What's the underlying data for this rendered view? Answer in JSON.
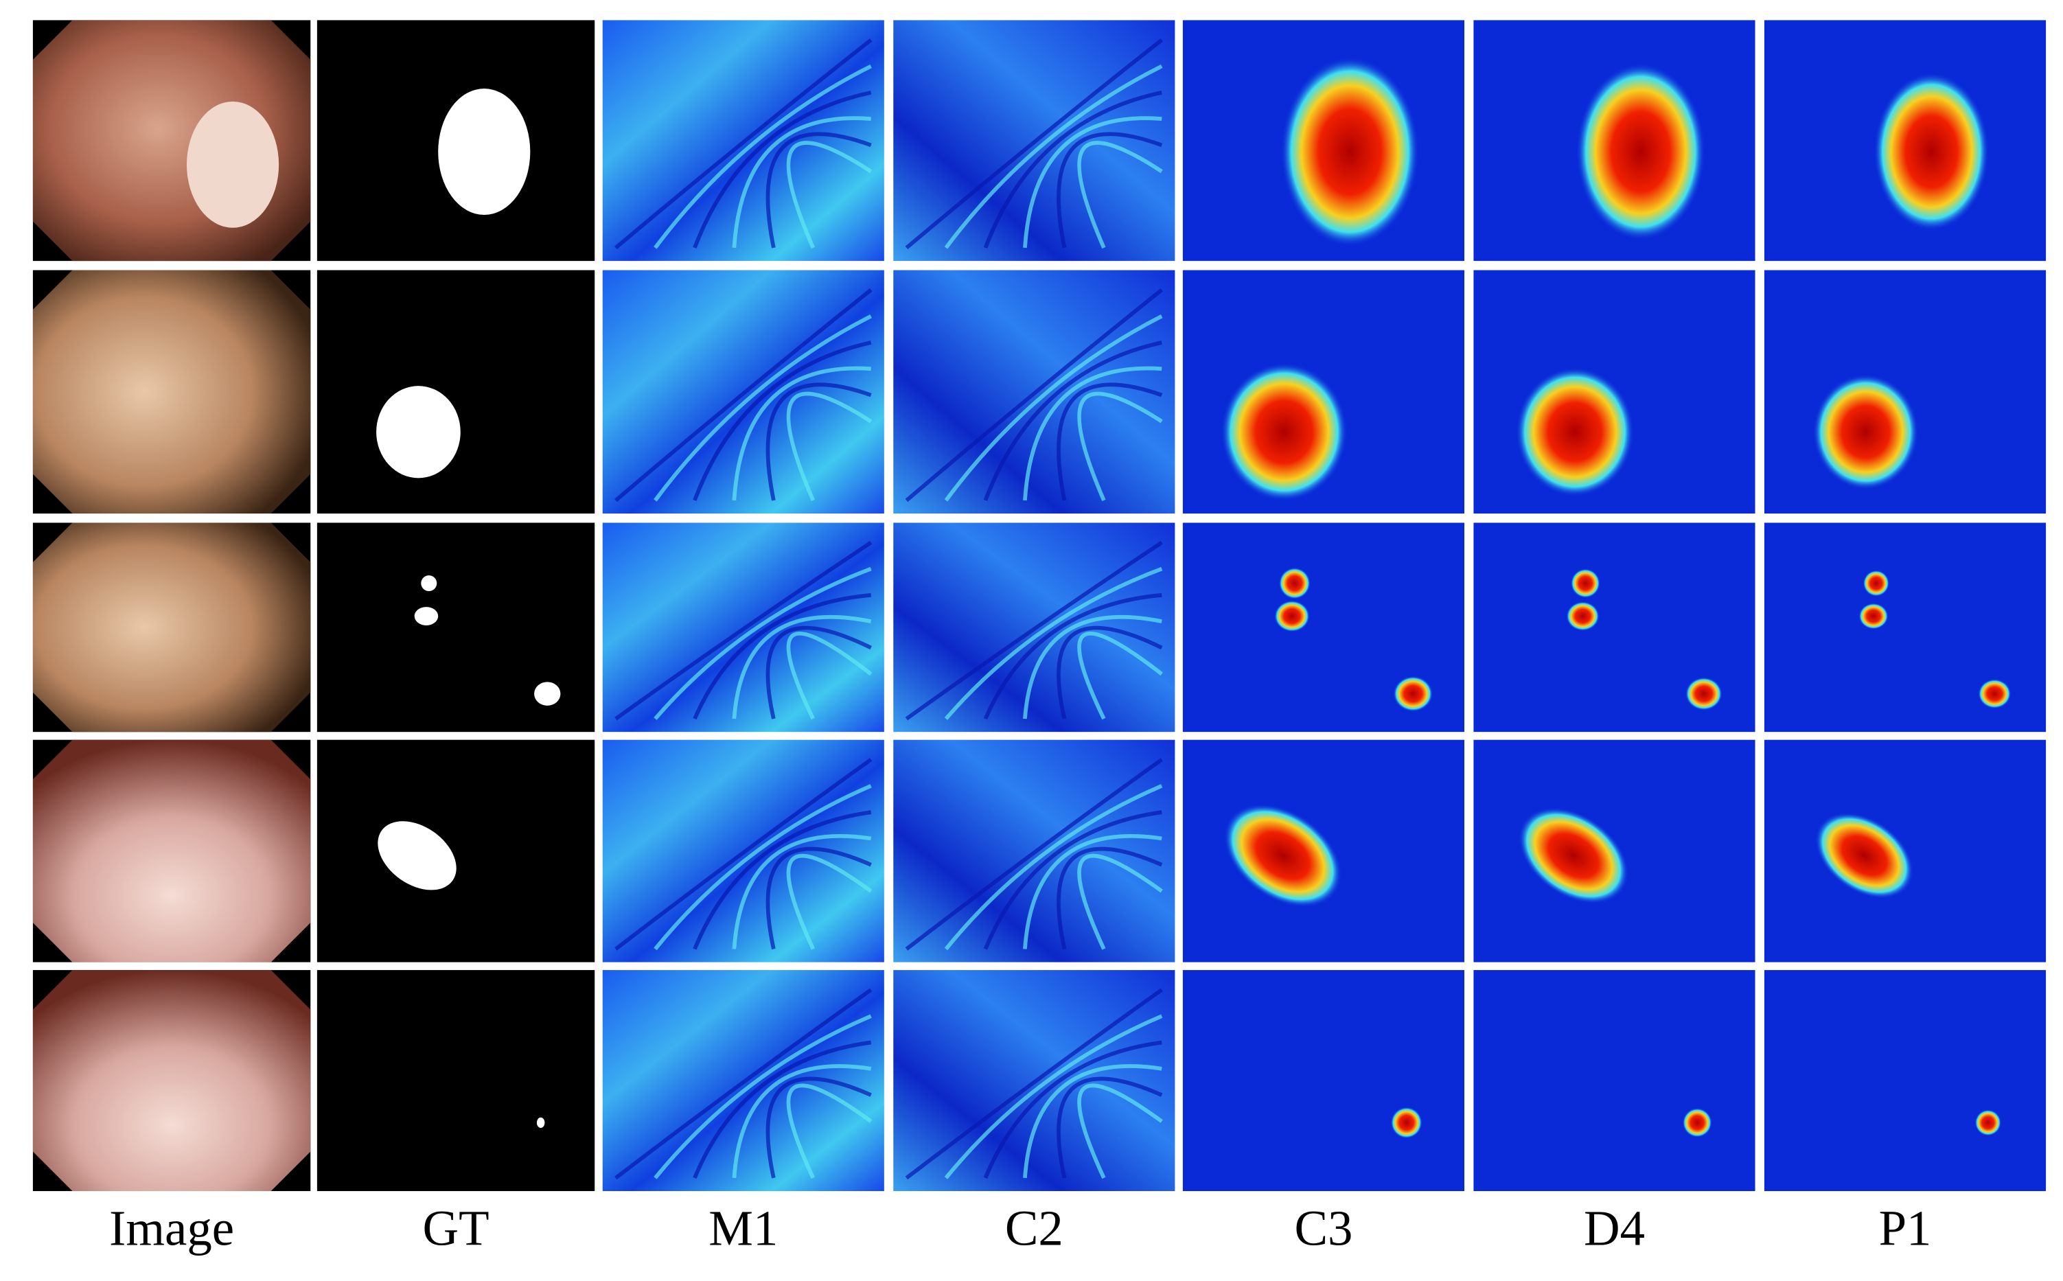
{
  "columns": [
    "Image",
    "GT",
    "M1",
    "C2",
    "C3",
    "D4",
    "P1"
  ]
}
